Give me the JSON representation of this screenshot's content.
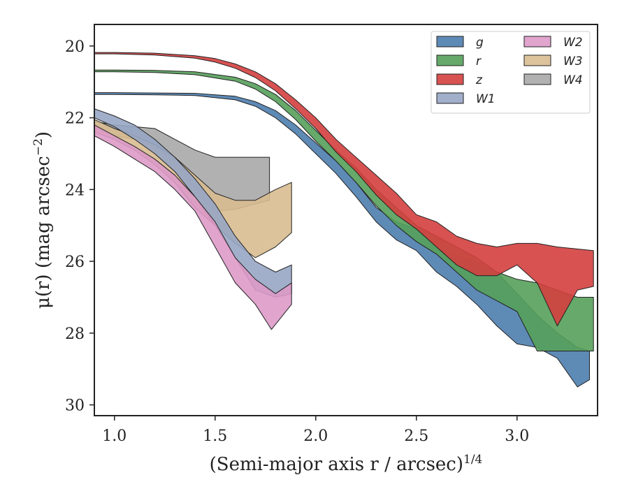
{
  "chart_data": {
    "type": "area",
    "xlabel": "(Semi-major axis r / arcsec)",
    "xlabel_sup": "1/4",
    "ylabel": "μ(r) (mag arcsec",
    "ylabel_sup": "−2",
    "ylabel_end": ")",
    "xlim": [
      0.9,
      3.4
    ],
    "ylim": [
      30.3,
      19.4
    ],
    "y_inverted": true,
    "xticks": [
      1.0,
      1.5,
      2.0,
      2.5,
      3.0
    ],
    "xtick_labels": [
      "1.0",
      "1.5",
      "2.0",
      "2.5",
      "3.0"
    ],
    "yticks": [
      20,
      22,
      24,
      26,
      28,
      30
    ],
    "ytick_labels": [
      "20",
      "22",
      "24",
      "26",
      "28",
      "30"
    ],
    "grid": false,
    "legend": {
      "placement": "top-right",
      "columns": 2
    },
    "series": [
      {
        "name": "W4",
        "color": "#a9a9a9",
        "upper": [
          [
            0.9,
            22.1
          ],
          [
            1.0,
            22.2
          ],
          [
            1.1,
            22.25
          ],
          [
            1.2,
            22.3
          ],
          [
            1.3,
            22.6
          ],
          [
            1.4,
            22.9
          ],
          [
            1.5,
            23.1
          ],
          [
            1.6,
            23.1
          ],
          [
            1.7,
            23.1
          ],
          [
            1.77,
            23.1
          ]
        ],
        "lower": [
          [
            0.9,
            22.3
          ],
          [
            1.0,
            22.5
          ],
          [
            1.1,
            22.6
          ],
          [
            1.2,
            22.8
          ],
          [
            1.3,
            23.2
          ],
          [
            1.4,
            24.0
          ],
          [
            1.5,
            24.6
          ],
          [
            1.6,
            24.55
          ],
          [
            1.7,
            24.4
          ],
          [
            1.77,
            24.3
          ]
        ]
      },
      {
        "name": "W3",
        "color": "#d8bc91",
        "upper": [
          [
            0.9,
            22.05
          ],
          [
            1.0,
            22.3
          ],
          [
            1.1,
            22.5
          ],
          [
            1.2,
            22.75
          ],
          [
            1.3,
            23.1
          ],
          [
            1.4,
            23.6
          ],
          [
            1.5,
            24.1
          ],
          [
            1.6,
            24.3
          ],
          [
            1.7,
            24.3
          ],
          [
            1.8,
            24.0
          ],
          [
            1.88,
            23.8
          ]
        ],
        "lower": [
          [
            0.9,
            22.4
          ],
          [
            1.0,
            22.6
          ],
          [
            1.1,
            22.9
          ],
          [
            1.2,
            23.3
          ],
          [
            1.3,
            23.8
          ],
          [
            1.4,
            24.5
          ],
          [
            1.5,
            25.0
          ],
          [
            1.6,
            25.5
          ],
          [
            1.7,
            25.9
          ],
          [
            1.8,
            25.6
          ],
          [
            1.88,
            25.2
          ]
        ]
      },
      {
        "name": "W1",
        "color": "#97a6c4",
        "upper": [
          [
            0.9,
            21.75
          ],
          [
            1.0,
            21.95
          ],
          [
            1.1,
            22.2
          ],
          [
            1.2,
            22.6
          ],
          [
            1.3,
            23.1
          ],
          [
            1.4,
            23.7
          ],
          [
            1.5,
            24.4
          ],
          [
            1.6,
            25.3
          ],
          [
            1.7,
            26.0
          ],
          [
            1.8,
            26.3
          ],
          [
            1.88,
            26.1
          ]
        ],
        "lower": [
          [
            0.9,
            22.0
          ],
          [
            1.0,
            22.25
          ],
          [
            1.1,
            22.6
          ],
          [
            1.2,
            23.0
          ],
          [
            1.3,
            23.5
          ],
          [
            1.4,
            24.2
          ],
          [
            1.5,
            25.0
          ],
          [
            1.6,
            25.9
          ],
          [
            1.7,
            26.8
          ],
          [
            1.8,
            27.0
          ],
          [
            1.88,
            26.9
          ]
        ]
      },
      {
        "name": "W2",
        "color": "#dd9ac8",
        "upper": [
          [
            0.9,
            22.2
          ],
          [
            1.0,
            22.5
          ],
          [
            1.1,
            22.8
          ],
          [
            1.2,
            23.15
          ],
          [
            1.3,
            23.6
          ],
          [
            1.4,
            24.2
          ],
          [
            1.5,
            24.9
          ],
          [
            1.6,
            25.9
          ],
          [
            1.7,
            26.5
          ],
          [
            1.8,
            26.9
          ],
          [
            1.88,
            26.6
          ]
        ],
        "lower": [
          [
            0.9,
            22.5
          ],
          [
            1.0,
            22.8
          ],
          [
            1.1,
            23.15
          ],
          [
            1.2,
            23.5
          ],
          [
            1.3,
            24.0
          ],
          [
            1.4,
            24.6
          ],
          [
            1.5,
            25.6
          ],
          [
            1.6,
            26.6
          ],
          [
            1.7,
            27.2
          ],
          [
            1.78,
            27.9
          ],
          [
            1.88,
            27.2
          ]
        ]
      },
      {
        "name": "g",
        "color": "#4c7dae",
        "upper": [
          [
            0.9,
            21.3
          ],
          [
            1.0,
            21.3
          ],
          [
            1.2,
            21.31
          ],
          [
            1.4,
            21.32
          ],
          [
            1.6,
            21.4
          ],
          [
            1.7,
            21.55
          ],
          [
            1.8,
            21.8
          ],
          [
            1.9,
            22.2
          ],
          [
            2.0,
            22.7
          ],
          [
            2.1,
            23.2
          ],
          [
            2.2,
            23.8
          ],
          [
            2.3,
            24.5
          ],
          [
            2.4,
            24.9
          ],
          [
            2.5,
            25.1
          ],
          [
            2.6,
            25.6
          ],
          [
            2.7,
            25.9
          ],
          [
            2.8,
            26.0
          ],
          [
            2.9,
            26.3
          ],
          [
            3.0,
            26.9
          ],
          [
            3.1,
            27.5
          ],
          [
            3.2,
            28.0
          ],
          [
            3.3,
            28.4
          ],
          [
            3.36,
            28.5
          ]
        ],
        "lower": [
          [
            0.9,
            21.35
          ],
          [
            1.0,
            21.35
          ],
          [
            1.2,
            21.36
          ],
          [
            1.4,
            21.38
          ],
          [
            1.6,
            21.5
          ],
          [
            1.7,
            21.68
          ],
          [
            1.8,
            22.0
          ],
          [
            1.9,
            22.45
          ],
          [
            2.0,
            23.0
          ],
          [
            2.1,
            23.55
          ],
          [
            2.2,
            24.2
          ],
          [
            2.3,
            24.9
          ],
          [
            2.4,
            25.4
          ],
          [
            2.5,
            25.7
          ],
          [
            2.6,
            26.3
          ],
          [
            2.7,
            26.7
          ],
          [
            2.8,
            27.2
          ],
          [
            2.9,
            27.8
          ],
          [
            3.0,
            28.3
          ],
          [
            3.1,
            28.4
          ],
          [
            3.2,
            28.7
          ],
          [
            3.3,
            29.5
          ],
          [
            3.36,
            29.3
          ]
        ]
      },
      {
        "name": "r",
        "color": "#55a05a",
        "upper": [
          [
            0.9,
            20.67
          ],
          [
            1.0,
            20.67
          ],
          [
            1.2,
            20.68
          ],
          [
            1.4,
            20.72
          ],
          [
            1.6,
            20.87
          ],
          [
            1.7,
            21.05
          ],
          [
            1.8,
            21.35
          ],
          [
            1.9,
            21.8
          ],
          [
            2.0,
            22.35
          ],
          [
            2.1,
            22.9
          ],
          [
            2.2,
            23.4
          ],
          [
            2.3,
            24.0
          ],
          [
            2.4,
            24.5
          ],
          [
            2.5,
            25.0
          ],
          [
            2.6,
            25.3
          ],
          [
            2.7,
            25.6
          ],
          [
            2.8,
            25.9
          ],
          [
            2.9,
            26.3
          ],
          [
            3.0,
            26.5
          ],
          [
            3.1,
            26.6
          ],
          [
            3.2,
            26.8
          ],
          [
            3.3,
            27.0
          ],
          [
            3.38,
            27.0
          ]
        ],
        "lower": [
          [
            0.9,
            20.72
          ],
          [
            1.0,
            20.72
          ],
          [
            1.2,
            20.74
          ],
          [
            1.4,
            20.8
          ],
          [
            1.6,
            20.98
          ],
          [
            1.7,
            21.2
          ],
          [
            1.8,
            21.55
          ],
          [
            1.9,
            22.05
          ],
          [
            2.0,
            22.65
          ],
          [
            2.1,
            23.2
          ],
          [
            2.2,
            23.8
          ],
          [
            2.3,
            24.45
          ],
          [
            2.4,
            25.0
          ],
          [
            2.5,
            25.45
          ],
          [
            2.6,
            25.8
          ],
          [
            2.7,
            26.3
          ],
          [
            2.8,
            26.8
          ],
          [
            2.9,
            27.1
          ],
          [
            3.0,
            27.4
          ],
          [
            3.1,
            28.5
          ],
          [
            3.2,
            28.5
          ],
          [
            3.3,
            28.5
          ],
          [
            3.38,
            28.5
          ]
        ]
      },
      {
        "name": "z",
        "color": "#d43f3f",
        "upper": [
          [
            0.9,
            20.18
          ],
          [
            1.0,
            20.18
          ],
          [
            1.2,
            20.2
          ],
          [
            1.4,
            20.27
          ],
          [
            1.5,
            20.35
          ],
          [
            1.6,
            20.5
          ],
          [
            1.7,
            20.72
          ],
          [
            1.8,
            21.05
          ],
          [
            1.9,
            21.5
          ],
          [
            2.0,
            22.0
          ],
          [
            2.1,
            22.6
          ],
          [
            2.2,
            23.1
          ],
          [
            2.3,
            23.6
          ],
          [
            2.4,
            24.1
          ],
          [
            2.5,
            24.7
          ],
          [
            2.6,
            24.9
          ],
          [
            2.7,
            25.3
          ],
          [
            2.8,
            25.5
          ],
          [
            2.9,
            25.6
          ],
          [
            3.0,
            25.5
          ],
          [
            3.1,
            25.5
          ],
          [
            3.2,
            25.6
          ],
          [
            3.38,
            25.7
          ]
        ],
        "lower": [
          [
            0.9,
            20.22
          ],
          [
            1.0,
            20.22
          ],
          [
            1.2,
            20.25
          ],
          [
            1.4,
            20.34
          ],
          [
            1.5,
            20.45
          ],
          [
            1.6,
            20.62
          ],
          [
            1.7,
            20.88
          ],
          [
            1.8,
            21.25
          ],
          [
            1.9,
            21.75
          ],
          [
            2.0,
            22.3
          ],
          [
            2.1,
            22.95
          ],
          [
            2.2,
            23.5
          ],
          [
            2.3,
            24.15
          ],
          [
            2.4,
            24.7
          ],
          [
            2.5,
            25.1
          ],
          [
            2.6,
            25.6
          ],
          [
            2.7,
            26.1
          ],
          [
            2.8,
            26.4
          ],
          [
            2.9,
            26.4
          ],
          [
            3.0,
            26.1
          ],
          [
            3.1,
            26.6
          ],
          [
            3.2,
            27.8
          ],
          [
            3.3,
            26.8
          ],
          [
            3.38,
            26.7
          ]
        ]
      }
    ],
    "legend_order": [
      "g",
      "r",
      "z",
      "W1",
      "W2",
      "W3",
      "W4"
    ]
  }
}
